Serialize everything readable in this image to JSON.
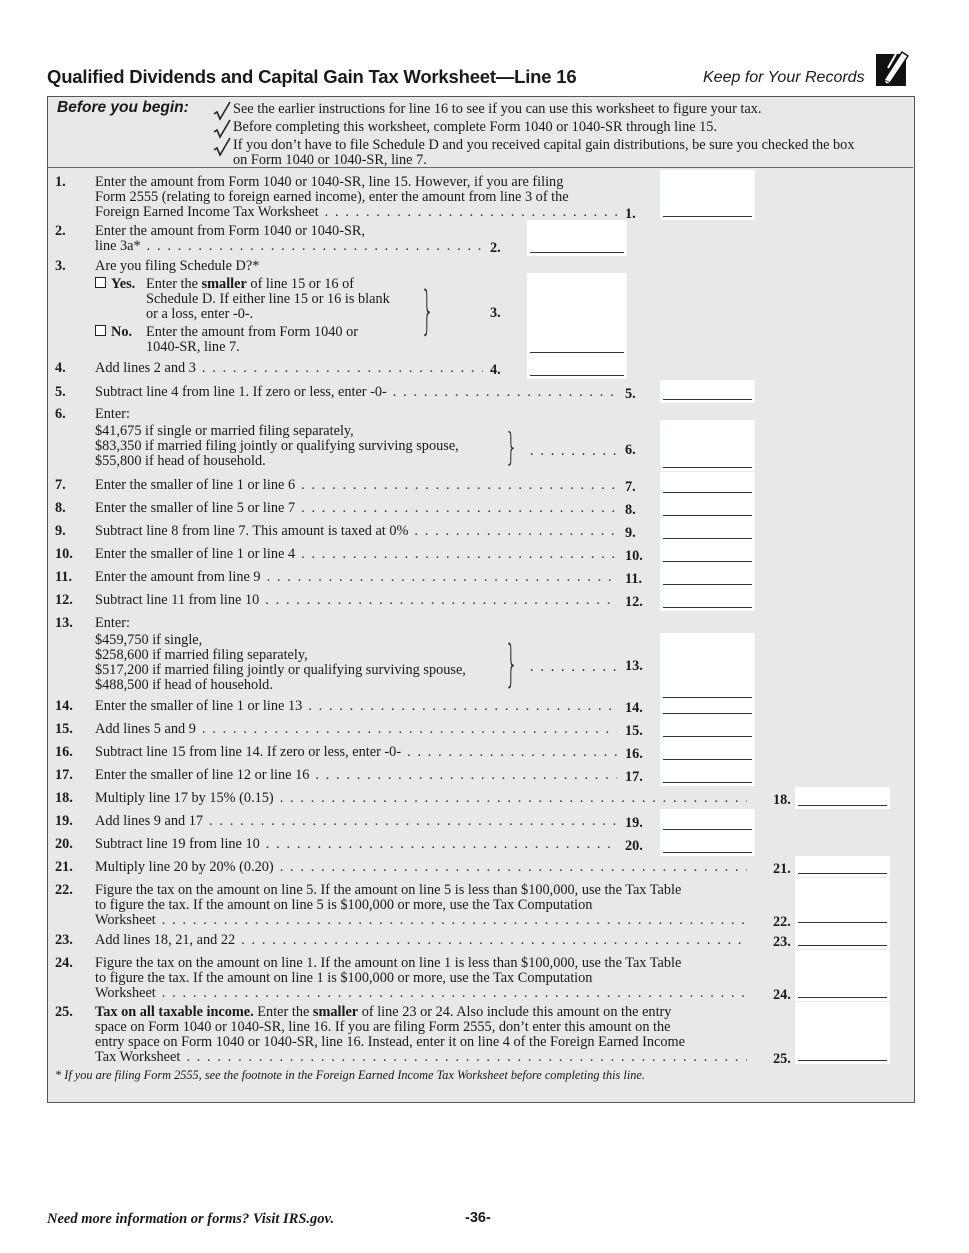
{
  "header": {
    "title": "Qualified Dividends and Capital Gain Tax Worksheet—Line 16",
    "keep_records": "Keep for Your Records",
    "icon": "pencil-icon"
  },
  "before_you_begin": {
    "title": "Before you begin:",
    "items": [
      [
        "See the earlier instructions for line 16 to see if you can use this worksheet to figure your tax."
      ],
      [
        "Before completing this worksheet, complete Form 1040 or 1040-SR through line 15."
      ],
      [
        "If you don’t have to file Schedule D and you received capital gain distributions, be sure you checked the box",
        "on Form 1040 or 1040-SR, line 7."
      ]
    ]
  },
  "lines": [
    {
      "num": "1.",
      "text": [
        "Enter the amount from Form 1040 or 1040-SR, line 15. However, if you are filing",
        "Form 2555 (relating to foreign earned income), enter the amount from line 3 of the",
        "Foreign Earned Income Tax Worksheet"
      ],
      "label": "1."
    },
    {
      "num": "2.",
      "text": [
        "Enter the amount from Form 1040 or 1040-SR,",
        "line 3a*"
      ],
      "label": "2."
    },
    {
      "num": "3.",
      "question": "Are you filing Schedule D?*",
      "yes": {
        "option": "Yes.",
        "lines": [
          [
            "Enter the ",
            "smaller",
            " of line 15 or 16 of"
          ],
          "Schedule D. If either line 15 or 16 is blank",
          "or a loss, enter -0-."
        ]
      },
      "no": {
        "option": "No.",
        "lines": [
          "Enter the amount from Form 1040 or",
          "1040-SR, line 7."
        ]
      },
      "label": "3."
    },
    {
      "num": "4.",
      "text": [
        "Add lines 2 and 3"
      ],
      "label": "4."
    },
    {
      "num": "5.",
      "text": [
        "Subtract line 4 from line 1. If zero or less, enter -0-"
      ],
      "label": "5."
    },
    {
      "num": "6.",
      "intro": "Enter:",
      "options": [
        "$41,675 if single or married filing separately,",
        "$83,350 if married filing jointly or qualifying surviving spouse,",
        "$55,800 if head of household."
      ],
      "label": "6."
    },
    {
      "num": "7.",
      "text": [
        "Enter the smaller of line 1 or line 6"
      ],
      "label": "7."
    },
    {
      "num": "8.",
      "text": [
        "Enter the smaller of line 5 or line 7"
      ],
      "label": "8."
    },
    {
      "num": "9.",
      "text": [
        "Subtract line 8 from line 7. This amount is taxed at 0%"
      ],
      "label": "9."
    },
    {
      "num": "10.",
      "text": [
        "Enter the smaller of line 1 or line 4"
      ],
      "label": "10."
    },
    {
      "num": "11.",
      "text": [
        "Enter the amount from line 9"
      ],
      "label": "11."
    },
    {
      "num": "12.",
      "text": [
        "Subtract line 11 from line 10"
      ],
      "label": "12."
    },
    {
      "num": "13.",
      "intro": "Enter:",
      "options": [
        "$459,750 if single,",
        "$258,600 if married filing separately,",
        "$517,200 if married filing jointly or qualifying surviving spouse,",
        "$488,500 if head of household."
      ],
      "label": "13."
    },
    {
      "num": "14.",
      "text": [
        "Enter the smaller of line 1 or line 13"
      ],
      "label": "14."
    },
    {
      "num": "15.",
      "text": [
        "Add lines 5 and 9"
      ],
      "label": "15."
    },
    {
      "num": "16.",
      "text": [
        "Subtract line 15 from line 14. If zero or less, enter -0-"
      ],
      "label": "16."
    },
    {
      "num": "17.",
      "text": [
        "Enter the smaller of line 12 or line 16"
      ],
      "label": "17."
    },
    {
      "num": "18.",
      "text": [
        "Multiply line 17 by 15% (0.15)"
      ],
      "label": "18."
    },
    {
      "num": "19.",
      "text": [
        "Add lines 9 and 17"
      ],
      "label": "19."
    },
    {
      "num": "20.",
      "text": [
        "Subtract line 19 from line 10"
      ],
      "label": "20."
    },
    {
      "num": "21.",
      "text": [
        "Multiply line 20 by 20% (0.20)"
      ],
      "label": "21."
    },
    {
      "num": "22.",
      "text": [
        "Figure the tax on the amount on line 5. If the amount on line 5 is less than $100,000, use the Tax Table",
        "to figure the tax. If the amount on line 5 is $100,000 or more, use the Tax Computation",
        "Worksheet"
      ],
      "label": "22."
    },
    {
      "num": "23.",
      "text": [
        "Add lines 18, 21, and 22"
      ],
      "label": "23."
    },
    {
      "num": "24.",
      "text": [
        "Figure the tax on the amount on line 1. If the amount on line 1 is less than $100,000, use the Tax Table",
        "to figure the tax. If the amount on line 1 is $100,000 or more, use the Tax Computation",
        "Worksheet"
      ],
      "label": "24."
    },
    {
      "num": "25.",
      "text": [
        [
          "",
          "Tax on all taxable income.",
          " Enter the ",
          "smaller",
          " of line 23 or 24. Also include this amount on the entry"
        ],
        "space on Form 1040 or 1040-SR, line 16. If you are filing Form 2555, don’t enter this amount on the",
        "entry space on Form 1040 or 1040-SR, line 16. Instead, enter it on line 4 of the Foreign Earned Income",
        "Tax Worksheet"
      ],
      "label": "25."
    }
  ],
  "footnote": "* If you are filing Form 2555, see the footnote in the Foreign Earned Income Tax Worksheet before completing this line.",
  "footer": {
    "left": "Need more information or forms? Visit IRS.gov.",
    "page": "-36-"
  }
}
